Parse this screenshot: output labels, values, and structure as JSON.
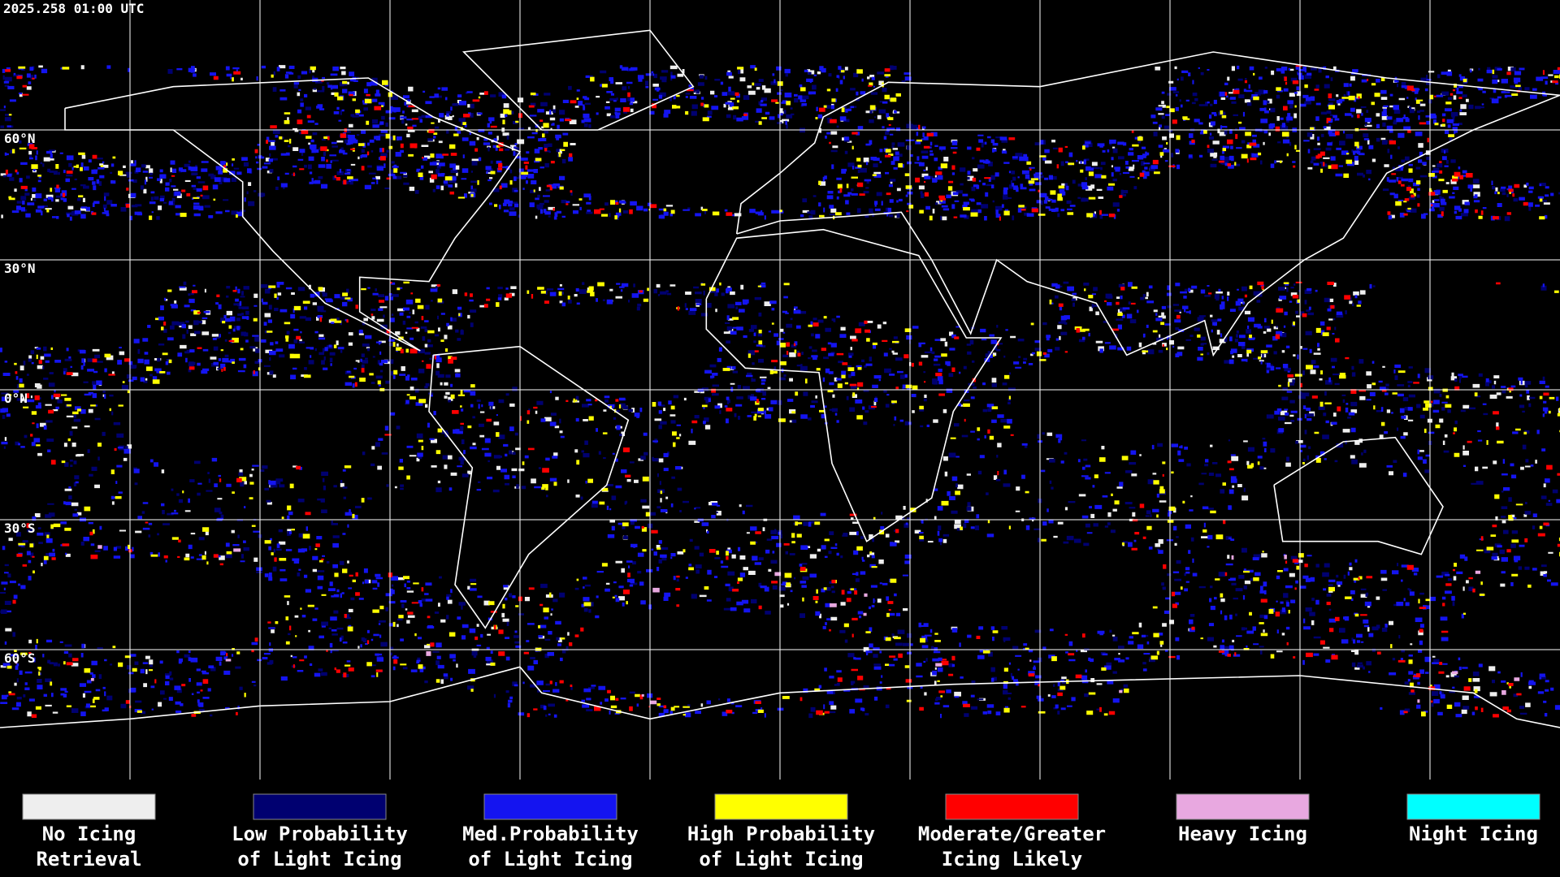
{
  "timestamp": "2025.258 01:00 UTC",
  "lat_labels": [
    "60°N",
    "30°N",
    "0°N",
    "30°S",
    "60°S"
  ],
  "legend": [
    {
      "lines": [
        "No Icing",
        "Retrieval"
      ],
      "color": "#eeeeee"
    },
    {
      "lines": [
        "Low Probability",
        "of Light Icing"
      ],
      "color": "#000070"
    },
    {
      "lines": [
        "Med.Probability",
        "of Light Icing"
      ],
      "color": "#1414f0"
    },
    {
      "lines": [
        "High Probability",
        "of Light Icing"
      ],
      "color": "#ffff00"
    },
    {
      "lines": [
        "Moderate/Greater",
        "Icing Likely"
      ],
      "color": "#ff0000"
    },
    {
      "lines": [
        "Heavy Icing"
      ],
      "color": "#e8a8e0"
    },
    {
      "lines": [
        "Night Icing"
      ],
      "color": "#00ffff"
    }
  ]
}
